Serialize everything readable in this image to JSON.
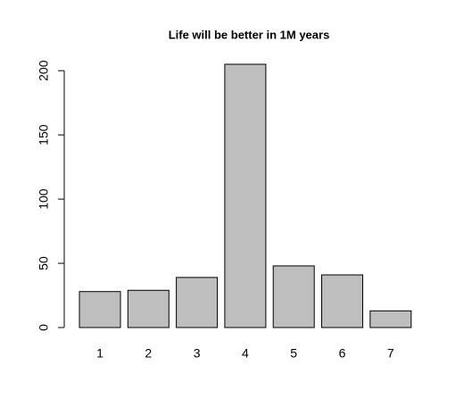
{
  "chart_data": {
    "type": "bar",
    "title": "Life will be better in 1M years",
    "categories": [
      "1",
      "2",
      "3",
      "4",
      "5",
      "6",
      "7"
    ],
    "values": [
      28,
      29,
      39,
      205,
      48,
      41,
      13
    ],
    "color": "#bebebe",
    "ylim": [
      0,
      205
    ],
    "yticks": [
      0,
      50,
      100,
      150,
      200
    ],
    "grid": false
  }
}
